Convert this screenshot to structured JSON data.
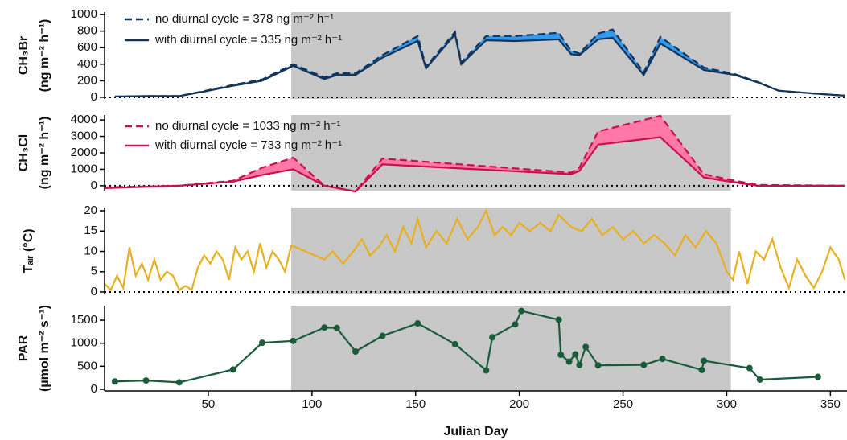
{
  "chart_data": [
    {
      "type": "line",
      "ylabel": [
        "CH₃Br",
        "(ng m⁻² h⁻¹)"
      ],
      "xlim": [
        0,
        358
      ],
      "ylim": [
        -20,
        1030
      ],
      "yticks": [
        0,
        200,
        400,
        600,
        800,
        1000
      ],
      "zero_line": true,
      "shade_x": [
        90,
        302
      ],
      "shade_color": "#c8c8c8",
      "fill_between": true,
      "fill_color": "#3399ee",
      "x": [
        5,
        20,
        36,
        48,
        62,
        76,
        91,
        106,
        112,
        121,
        134,
        151,
        155,
        169,
        172,
        184,
        198,
        219,
        225,
        229,
        238,
        245,
        260,
        268,
        289,
        304,
        315,
        325,
        345,
        357
      ],
      "series": [
        {
          "name": "no diurnal cycle = 378 ng m⁻² h⁻¹",
          "color": "#12345a",
          "line_style": "dashed",
          "values": [
            10,
            15,
            15,
            75,
            150,
            215,
            400,
            240,
            290,
            290,
            510,
            740,
            370,
            790,
            420,
            740,
            740,
            780,
            560,
            530,
            770,
            820,
            300,
            730,
            360,
            280,
            185,
            80,
            40,
            20
          ]
        },
        {
          "name": "with diurnal cycle = 335 ng m⁻² h⁻¹",
          "color": "#12345a",
          "line_style": "solid",
          "values": [
            10,
            15,
            15,
            70,
            140,
            200,
            380,
            220,
            270,
            270,
            480,
            680,
            350,
            760,
            400,
            690,
            680,
            700,
            520,
            510,
            700,
            720,
            270,
            650,
            330,
            270,
            180,
            80,
            40,
            20
          ]
        }
      ]
    },
    {
      "type": "line",
      "ylabel": [
        "CH₃Cl",
        "(ng m⁻² h⁻¹)"
      ],
      "xlim": [
        0,
        358
      ],
      "ylim": [
        -300,
        4300
      ],
      "yticks": [
        0,
        1000,
        2000,
        3000,
        4000
      ],
      "zero_line": true,
      "shade_x": [
        90,
        302
      ],
      "shade_color": "#c8c8c8",
      "fill_between": true,
      "fill_color": "#ff78a8",
      "x": [
        0,
        36,
        62,
        76,
        91,
        106,
        121,
        134,
        225,
        229,
        238,
        268,
        289,
        304,
        315,
        357
      ],
      "series": [
        {
          "name": "no diurnal cycle = 1033 ng m⁻² h⁻¹",
          "color": "#c8104a",
          "line_style": "dashed",
          "values": [
            -100,
            0,
            300,
            1100,
            1700,
            0,
            -350,
            1650,
            800,
            1100,
            3300,
            4250,
            700,
            300,
            50,
            0
          ]
        },
        {
          "name": "with diurnal cycle = 733 ng m⁻² h⁻¹",
          "color": "#c8104a",
          "line_style": "solid",
          "values": [
            -150,
            0,
            250,
            650,
            1000,
            0,
            -350,
            1300,
            700,
            900,
            2500,
            2950,
            500,
            200,
            0,
            0
          ]
        }
      ]
    },
    {
      "type": "line",
      "ylabel": [
        "Tₐᵢᵣ (°C)"
      ],
      "xlim": [
        0,
        358
      ],
      "ylim": [
        -0.6,
        20.8
      ],
      "yticks": [
        0,
        5,
        10,
        15,
        20
      ],
      "zero_line": true,
      "shade_x": [
        90,
        302
      ],
      "shade_color": "#c8c8c8",
      "x": [
        0,
        3,
        6,
        9,
        12,
        15,
        18,
        21,
        24,
        27,
        30,
        33,
        36,
        39,
        42,
        45,
        48,
        51,
        54,
        57,
        60,
        63,
        66,
        69,
        72,
        75,
        78,
        81,
        84,
        87,
        90,
        106,
        110,
        115,
        120,
        124,
        128,
        132,
        136,
        140,
        144,
        148,
        151,
        155,
        160,
        165,
        170,
        175,
        180,
        184,
        188,
        192,
        196,
        200,
        205,
        210,
        215,
        219,
        225,
        230,
        235,
        240,
        245,
        250,
        255,
        260,
        265,
        270,
        275,
        280,
        285,
        290,
        295,
        300,
        303,
        306,
        310,
        314,
        318,
        322,
        326,
        330,
        334,
        338,
        342,
        346,
        350,
        354,
        357
      ],
      "series": [
        {
          "name": "Tair",
          "color": "#e8b020",
          "line_style": "solid",
          "values": [
            2,
            0.5,
            4,
            1,
            11,
            4,
            7,
            3,
            8,
            3,
            5,
            4,
            0.5,
            1.5,
            0.5,
            6,
            9,
            7,
            10,
            8,
            3,
            11,
            8,
            10,
            5,
            12,
            6,
            10,
            8,
            5,
            11.5,
            8,
            10,
            7,
            10,
            13,
            9,
            11,
            14,
            10,
            16,
            12,
            18,
            11,
            15,
            12,
            18,
            13,
            16,
            20,
            14,
            16,
            14,
            17,
            15,
            17,
            15,
            19,
            16,
            15,
            18,
            14,
            16,
            13,
            15,
            12,
            14,
            12,
            9,
            14,
            11,
            15,
            12,
            5,
            3,
            10,
            2,
            10,
            8,
            13,
            6,
            1,
            8,
            4,
            1,
            5,
            11,
            8,
            3
          ]
        }
      ]
    },
    {
      "type": "line",
      "ylabel": [
        "PAR",
        "(µmol m⁻² s⁻¹)"
      ],
      "xlim": [
        0,
        358
      ],
      "ylim": [
        -35,
        1815
      ],
      "yticks": [
        0,
        500,
        1000,
        1500
      ],
      "xticks": [
        50,
        100,
        150,
        200,
        250,
        300,
        350
      ],
      "xlabel": "Julian Day",
      "shade_x": [
        90,
        302
      ],
      "shade_color": "#c8c8c8",
      "markers": true,
      "x": [
        5,
        20,
        36,
        62,
        76,
        91,
        106,
        112,
        121,
        134,
        151,
        169,
        184,
        187,
        198,
        201,
        219,
        220,
        224,
        227,
        229,
        232,
        238,
        260,
        269,
        288,
        289,
        311,
        316,
        344
      ],
      "series": [
        {
          "name": "PAR",
          "color": "#1a5c3a",
          "line_style": "solid",
          "values": [
            170,
            190,
            150,
            430,
            1010,
            1050,
            1340,
            1330,
            820,
            1160,
            1430,
            980,
            410,
            1130,
            1410,
            1700,
            1510,
            750,
            600,
            760,
            530,
            920,
            520,
            530,
            660,
            420,
            620,
            460,
            210,
            270
          ]
        }
      ]
    }
  ]
}
